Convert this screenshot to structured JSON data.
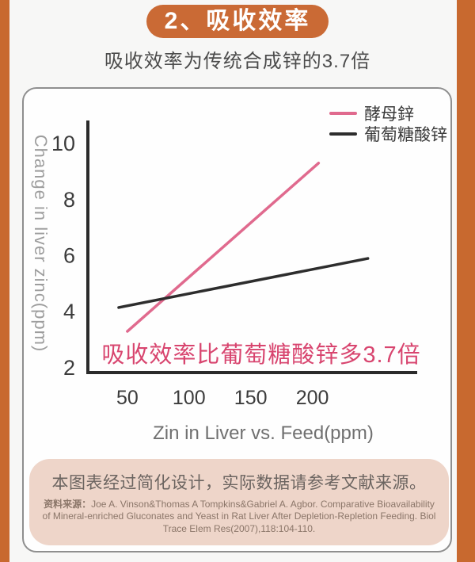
{
  "header": {
    "badge": "2、吸收效率",
    "subtitle": "吸收效率为传统合成锌的3.7倍"
  },
  "chart_data": {
    "type": "line",
    "xlabel": "Zin in Liver vs. Feed(ppm)",
    "ylabel": "Change in liver zinc(ppm)",
    "xlim": [
      18,
      285
    ],
    "ylim": [
      1.83,
      10.82
    ],
    "xticks": [
      50,
      100,
      150,
      200
    ],
    "yticks": [
      2,
      4,
      6,
      8,
      10
    ],
    "grid": false,
    "legend_position": "top-right",
    "series": [
      {
        "name": "酵母鋅",
        "color": "#e06a8e",
        "points": [
          [
            50,
            3.3
          ],
          [
            205,
            9.3
          ]
        ]
      },
      {
        "name": "葡萄糖酸锌",
        "color": "#2d2d2d",
        "points": [
          [
            43,
            4.15
          ],
          [
            245,
            5.9
          ]
        ]
      }
    ],
    "annotation": "吸收效率比葡萄糖酸锌多3.7倍"
  },
  "source": {
    "note": "本图表经过简化设计，实际数据请参考文献来源。",
    "label": "资料来源：",
    "citation": "Joe A. Vinson&Thomas A Tompkins&Gabriel A. Agbor. Comparative Bioavailability of Mineral-enriched Gluconates and Yeast in Rat Liver After Depletion-Repletion Feeding. Biol Trace Elem Res(2007),118:104-110."
  },
  "colors": {
    "accent_orange": "#c8692f",
    "badge_orange": "#ca6a35",
    "yeast_pink": "#e06a8e",
    "gluconate_black": "#2d2d2d",
    "annotation_pink": "#d8456f",
    "source_box_bg": "#eed5c9"
  }
}
